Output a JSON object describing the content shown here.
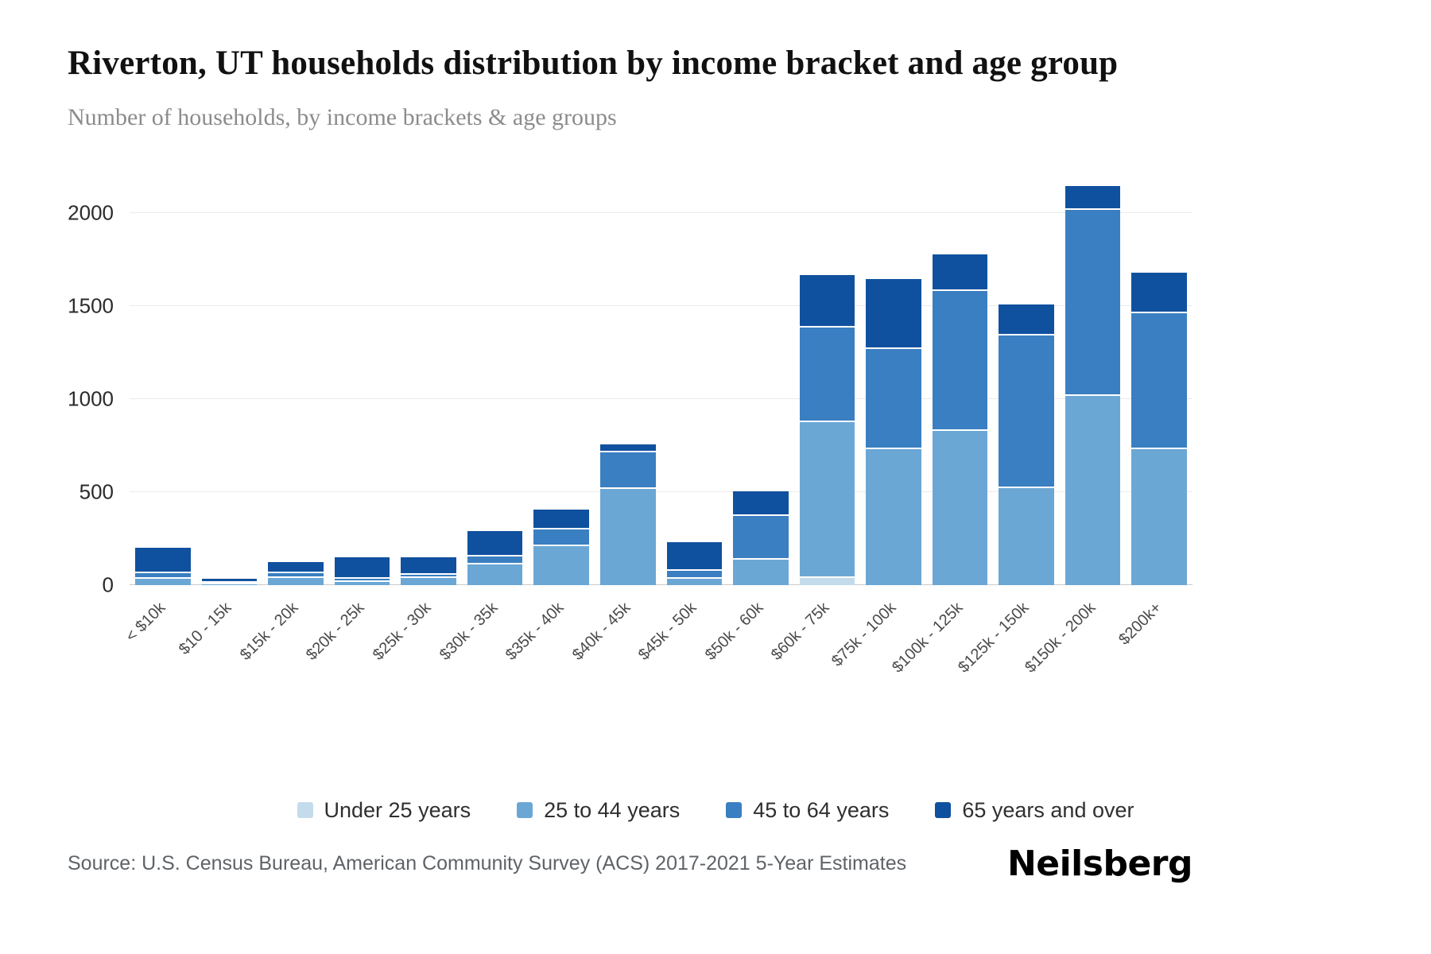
{
  "title": "Riverton, UT households distribution by income bracket and age group",
  "subtitle": "Number of households, by income brackets & age groups",
  "source": "Source: U.S. Census Bureau, American Community Survey (ACS) 2017-2021 5-Year Estimates",
  "brand": "Neilsberg",
  "colors": {
    "under_25": "#c4dbeb",
    "age_25_to_44": "#6ba7d5",
    "age_45_to_64": "#3a7fc1",
    "age_65_plus": "#10519f",
    "gridline": "#ebebeb",
    "axis_text": "#2b2b2b"
  },
  "chart_data": {
    "type": "bar",
    "stacked": true,
    "title": "Riverton, UT households distribution by income bracket and age group",
    "subtitle": "Number of households, by income brackets & age groups",
    "xlabel": "",
    "ylabel": "Number of households",
    "ylim": [
      0,
      2200
    ],
    "yticks": [
      0,
      500,
      1000,
      1500,
      2000
    ],
    "grid": true,
    "legend_position": "bottom",
    "categories": [
      "< $10k",
      "$10 - 15k",
      "$15k - 20k",
      "$20k - 25k",
      "$25k - 30k",
      "$30k - 35k",
      "$35k - 40k",
      "$40k - 45k",
      "$45k - 50k",
      "$50k - 60k",
      "$60k - 75k",
      "$75k - 100k",
      "$100k - 125k",
      "$125k - 150k",
      "$150k - 200k",
      "$200k+"
    ],
    "series": [
      {
        "name": "Under 25 years",
        "color": "#c4dbeb",
        "values": [
          0,
          0,
          0,
          0,
          0,
          0,
          0,
          0,
          0,
          0,
          45,
          0,
          0,
          0,
          0,
          0
        ]
      },
      {
        "name": "25 to 44 years",
        "color": "#6ba7d5",
        "values": [
          40,
          12,
          45,
          25,
          45,
          120,
          215,
          525,
          40,
          145,
          840,
          740,
          835,
          530,
          1025,
          740
        ]
      },
      {
        "name": "45 to 64 years",
        "color": "#3a7fc1",
        "values": [
          30,
          10,
          28,
          15,
          20,
          40,
          90,
          195,
          45,
          235,
          505,
          535,
          755,
          820,
          1000,
          730
        ]
      },
      {
        "name": "65 years and over",
        "color": "#10519f",
        "values": [
          130,
          13,
          52,
          110,
          85,
          130,
          100,
          35,
          145,
          125,
          275,
          370,
          185,
          155,
          120,
          210
        ]
      }
    ]
  }
}
